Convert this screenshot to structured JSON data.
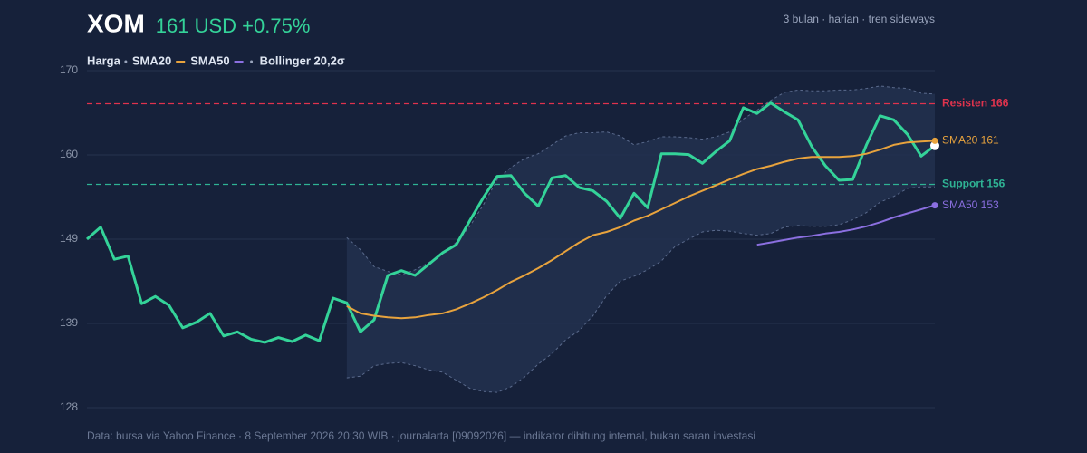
{
  "header": {
    "ticker": "XOM",
    "quote": "161 USD +0.75%",
    "subtitle": "3 bulan · harian · tren sideways"
  },
  "chart_data": {
    "type": "line",
    "ylim": [
      128.3,
      170.1
    ],
    "yticks": [
      {
        "value": 128.3,
        "label": "128"
      },
      {
        "value": 138.75,
        "label": "139"
      },
      {
        "value": 149.2,
        "label": "149"
      },
      {
        "value": 159.65,
        "label": "160"
      },
      {
        "value": 170.1,
        "label": "170"
      }
    ],
    "grid": true,
    "series": [
      {
        "name": "Harga",
        "color": "#34d399",
        "values": [
          149.2,
          150.7,
          146.7,
          147.1,
          141.2,
          142.1,
          141.0,
          138.2,
          138.9,
          140.0,
          137.2,
          137.7,
          136.8,
          136.4,
          137.0,
          136.5,
          137.3,
          136.6,
          141.9,
          141.3,
          137.7,
          139.2,
          144.7,
          145.3,
          144.7,
          146.1,
          147.5,
          148.5,
          151.5,
          154.4,
          157.0,
          157.1,
          154.9,
          153.3,
          156.8,
          157.1,
          155.6,
          155.2,
          153.9,
          151.8,
          154.9,
          153.1,
          159.8,
          159.8,
          159.7,
          158.6,
          160.1,
          161.4,
          165.5,
          164.8,
          166.1,
          165.0,
          164.0,
          160.7,
          158.3,
          156.5,
          156.6,
          160.9,
          164.5,
          164.0,
          162.2,
          159.5,
          160.8
        ]
      },
      {
        "name": "SMA20",
        "color": "#e8a33d",
        "end_label": "SMA20 161",
        "values": [
          null,
          null,
          null,
          null,
          null,
          null,
          null,
          null,
          null,
          null,
          null,
          null,
          null,
          null,
          null,
          null,
          null,
          null,
          null,
          140.9,
          140.0,
          139.7,
          139.5,
          139.4,
          139.5,
          139.8,
          140.0,
          140.5,
          141.2,
          142.0,
          142.9,
          143.9,
          144.7,
          145.6,
          146.6,
          147.7,
          148.8,
          149.7,
          150.1,
          150.7,
          151.5,
          152.1,
          152.9,
          153.7,
          154.5,
          155.2,
          155.9,
          156.6,
          157.3,
          157.9,
          158.3,
          158.8,
          159.2,
          159.4,
          159.4,
          159.4,
          159.5,
          159.8,
          160.3,
          160.9,
          161.2,
          161.3,
          161.4
        ]
      },
      {
        "name": "SMA50",
        "color": "#8b6fe0",
        "end_label": "SMA50 153",
        "values": [
          null,
          null,
          null,
          null,
          null,
          null,
          null,
          null,
          null,
          null,
          null,
          null,
          null,
          null,
          null,
          null,
          null,
          null,
          null,
          null,
          null,
          null,
          null,
          null,
          null,
          null,
          null,
          null,
          null,
          null,
          null,
          null,
          null,
          null,
          null,
          null,
          null,
          null,
          null,
          null,
          null,
          null,
          null,
          null,
          null,
          null,
          null,
          null,
          null,
          148.5,
          148.8,
          149.1,
          149.4,
          149.6,
          149.9,
          150.1,
          150.4,
          150.8,
          151.3,
          151.9,
          152.4,
          152.9,
          153.4
        ]
      },
      {
        "name": "Bollinger 20,2σ",
        "color": "#5a6a8c",
        "fill": "#22304f",
        "upper": [
          null,
          null,
          null,
          null,
          null,
          null,
          null,
          null,
          null,
          null,
          null,
          null,
          null,
          null,
          null,
          null,
          null,
          null,
          null,
          149.4,
          147.9,
          145.8,
          145.2,
          144.8,
          145.4,
          146.3,
          147.4,
          148.8,
          150.8,
          153.5,
          156.6,
          158.1,
          159.2,
          159.8,
          160.9,
          162.0,
          162.4,
          162.4,
          162.5,
          162.0,
          160.9,
          161.3,
          161.9,
          161.9,
          161.8,
          161.6,
          161.9,
          162.5,
          164.1,
          165.2,
          166.4,
          167.4,
          167.7,
          167.6,
          167.6,
          167.7,
          167.7,
          167.9,
          168.2,
          168.0,
          167.9,
          167.3,
          167.2
        ],
        "lower": [
          null,
          null,
          null,
          null,
          null,
          null,
          null,
          null,
          null,
          null,
          null,
          null,
          null,
          null,
          null,
          null,
          null,
          null,
          null,
          132.0,
          132.2,
          133.5,
          133.8,
          133.9,
          133.5,
          133.0,
          132.7,
          131.7,
          130.7,
          130.3,
          130.2,
          130.9,
          132.1,
          133.7,
          135.0,
          136.7,
          137.9,
          139.7,
          142.2,
          144.0,
          144.6,
          145.4,
          146.5,
          148.3,
          149.2,
          150.1,
          150.3,
          150.2,
          149.9,
          149.7,
          149.9,
          150.7,
          150.9,
          150.8,
          150.8,
          151.0,
          151.6,
          152.5,
          153.8,
          154.5,
          155.5,
          155.7,
          155.7
        ]
      }
    ],
    "hlines": [
      {
        "label": "Resisten 166",
        "value": 166,
        "color": "#e0334d"
      },
      {
        "label": "Support 156",
        "value": 156,
        "color": "#2fb394"
      }
    ],
    "source": "Data: bursa via Yahoo Finance · 8 September 2026 20:30 WIB · journalarta [09092026] — indikator dihitung internal, bukan saran investasi"
  }
}
